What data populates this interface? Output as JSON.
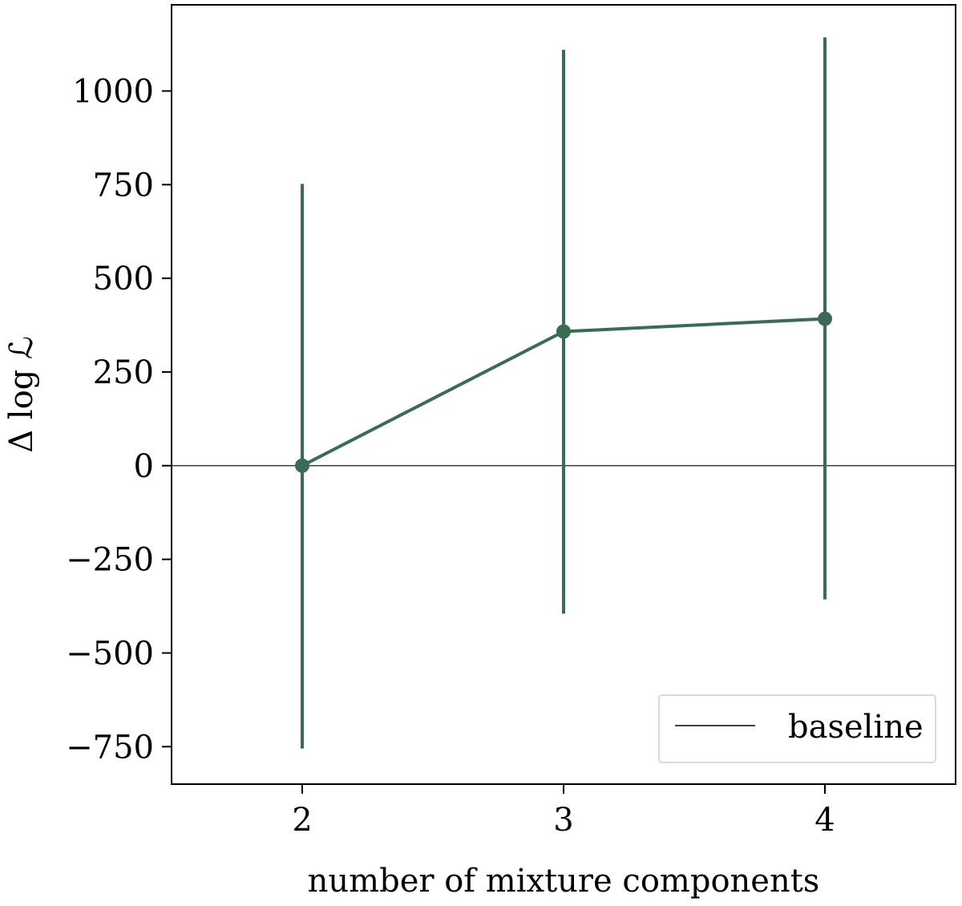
{
  "chart_data": {
    "type": "line",
    "xlabel": "number of mixture components",
    "ylabel": "Δ log ℒ",
    "x": [
      2,
      3,
      4
    ],
    "xticks": [
      "2",
      "3",
      "4"
    ],
    "xlim": [
      1.5,
      4.5
    ],
    "ylim": [
      -850,
      1230
    ],
    "yticks": [
      -750,
      -500,
      -250,
      0,
      250,
      500,
      750,
      1000
    ],
    "ytick_labels": [
      "−750",
      "−500",
      "−250",
      "0",
      "250",
      "500",
      "750",
      "1000"
    ],
    "series": [
      {
        "values": [
          0,
          358,
          392
        ],
        "error_low": [
          -755,
          -395,
          -357
        ],
        "error_high": [
          752,
          1110,
          1143
        ],
        "color": "#3a6b55"
      }
    ],
    "reference_line": {
      "y": 0,
      "label": "baseline",
      "color": "#000000"
    },
    "legend": {
      "position": "bottom-right",
      "entries": [
        "baseline"
      ]
    },
    "grid": false
  }
}
